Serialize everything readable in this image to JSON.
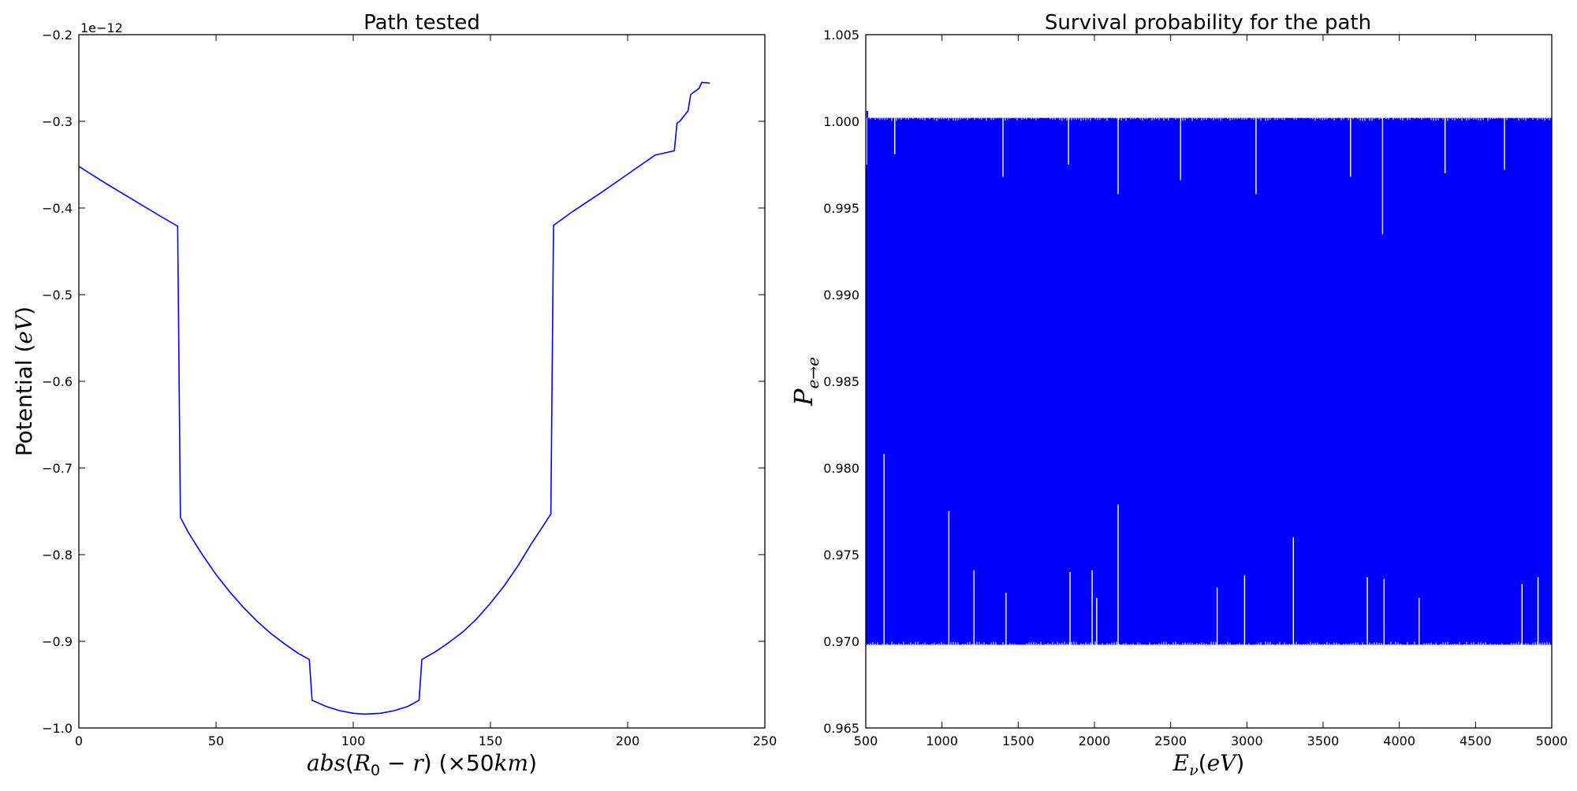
{
  "chart_data": [
    {
      "type": "line",
      "title": "Path tested",
      "xlabel": "abs(R₀ − r) (×50km)",
      "ylabel": "Potential (eV)",
      "offset_text": "1e−12",
      "xlim": [
        0,
        250
      ],
      "ylim": [
        -1.0,
        -0.2
      ],
      "xticks": [
        "0",
        "50",
        "100",
        "150",
        "200",
        "250"
      ],
      "yticks": [
        "−1.0",
        "−0.9",
        "−0.8",
        "−0.7",
        "−0.6",
        "−0.5",
        "−0.4",
        "−0.3",
        "−0.2"
      ],
      "color": "#0000ff",
      "series": [
        {
          "x": [
            0,
            10,
            20,
            30,
            36,
            37,
            40,
            45,
            50,
            55,
            60,
            65,
            70,
            75,
            80,
            84,
            85,
            90,
            95,
            100,
            104,
            110,
            115,
            120,
            124,
            125,
            130,
            135,
            140,
            145,
            150,
            155,
            160,
            165,
            170,
            172,
            173,
            180,
            190,
            200,
            210,
            217,
            218,
            219,
            222,
            223,
            226,
            227,
            230
          ],
          "y": [
            -0.352,
            -0.372,
            -0.391,
            -0.41,
            -0.421,
            -0.757,
            -0.775,
            -0.8,
            -0.823,
            -0.843,
            -0.861,
            -0.877,
            -0.891,
            -0.903,
            -0.914,
            -0.921,
            -0.968,
            -0.975,
            -0.98,
            -0.983,
            -0.984,
            -0.983,
            -0.98,
            -0.975,
            -0.968,
            -0.921,
            -0.912,
            -0.901,
            -0.889,
            -0.874,
            -0.856,
            -0.836,
            -0.813,
            -0.787,
            -0.763,
            -0.753,
            -0.42,
            -0.404,
            -0.383,
            -0.361,
            -0.339,
            -0.334,
            -0.302,
            -0.3,
            -0.288,
            -0.269,
            -0.262,
            -0.255,
            -0.256
          ]
        }
      ]
    },
    {
      "type": "line",
      "title": "Survival probability for the path",
      "xlabel": "E_ν(eV)",
      "ylabel": "P_e→e",
      "xlim": [
        500,
        5000
      ],
      "ylim": [
        0.965,
        1.005
      ],
      "xticks": [
        "500",
        "1000",
        "1500",
        "2000",
        "2500",
        "3000",
        "3500",
        "4000",
        "4500",
        "5000"
      ],
      "yticks": [
        "0.965",
        "0.970",
        "0.975",
        "0.980",
        "0.985",
        "0.990",
        "0.995",
        "1.000",
        "1.005"
      ],
      "color": "#0000ff",
      "band": {
        "min": 0.9698,
        "max": 1.0002
      },
      "spikes_up": [
        {
          "x": 620,
          "y": 0.9808
        },
        {
          "x": 1045,
          "y": 0.9775
        },
        {
          "x": 1210,
          "y": 0.9741
        },
        {
          "x": 1420,
          "y": 0.9728
        },
        {
          "x": 1840,
          "y": 0.974
        },
        {
          "x": 1985,
          "y": 0.9741
        },
        {
          "x": 2015,
          "y": 0.9725
        },
        {
          "x": 2155,
          "y": 0.9779
        },
        {
          "x": 2805,
          "y": 0.9731
        },
        {
          "x": 2985,
          "y": 0.9738
        },
        {
          "x": 3305,
          "y": 0.976
        },
        {
          "x": 3790,
          "y": 0.9737
        },
        {
          "x": 3900,
          "y": 0.9736
        },
        {
          "x": 4130,
          "y": 0.9725
        },
        {
          "x": 4805,
          "y": 0.9733
        },
        {
          "x": 4910,
          "y": 0.9737
        }
      ],
      "spikes_down": [
        {
          "x": 505,
          "y": 0.9975
        },
        {
          "x": 690,
          "y": 0.9981
        },
        {
          "x": 1400,
          "y": 0.9968
        },
        {
          "x": 1830,
          "y": 0.9975
        },
        {
          "x": 2155,
          "y": 0.9958
        },
        {
          "x": 2565,
          "y": 0.9966
        },
        {
          "x": 3060,
          "y": 0.9958
        },
        {
          "x": 3680,
          "y": 0.9968
        },
        {
          "x": 3890,
          "y": 0.9935
        },
        {
          "x": 4300,
          "y": 0.997
        },
        {
          "x": 4690,
          "y": 0.9972
        }
      ],
      "start_peak": {
        "x": 510,
        "y": 1.0006
      }
    }
  ]
}
